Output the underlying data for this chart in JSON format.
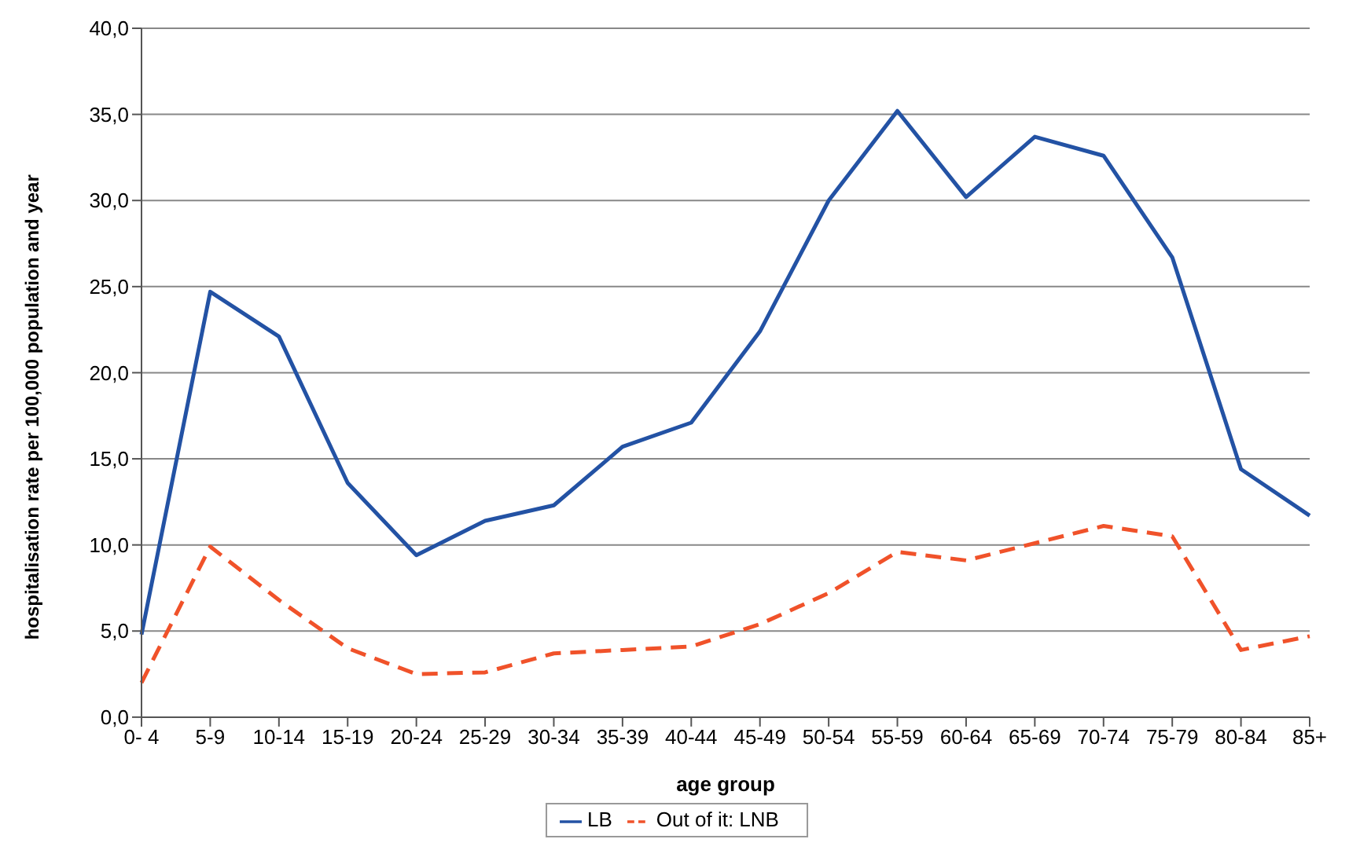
{
  "chart_data": {
    "type": "line",
    "xlabel": "age group",
    "ylabel": "hospitalisation rate per 100,000 population and year",
    "categories": [
      "0- 4",
      "5-9",
      "10-14",
      "15-19",
      "20-24",
      "25-29",
      "30-34",
      "35-39",
      "40-44",
      "45-49",
      "50-54",
      "55-59",
      "60-64",
      "65-69",
      "70-74",
      "75-79",
      "80-84",
      "85+"
    ],
    "series": [
      {
        "name": "LB",
        "color": "#2352a4",
        "line_style": "solid",
        "values": [
          4.8,
          24.7,
          22.1,
          13.6,
          9.4,
          11.4,
          12.3,
          15.7,
          17.1,
          22.4,
          30.0,
          35.2,
          30.2,
          33.7,
          32.6,
          26.7,
          14.4,
          11.7
        ]
      },
      {
        "name": "Out of it: LNB",
        "color": "#f0522a",
        "line_style": "dashed",
        "values": [
          2.0,
          9.9,
          6.8,
          4.0,
          2.5,
          2.6,
          3.7,
          3.9,
          4.1,
          5.4,
          7.2,
          9.6,
          9.1,
          10.1,
          11.1,
          10.5,
          3.9,
          4.7
        ]
      }
    ],
    "ylim": [
      0,
      40
    ],
    "yticks": [
      {
        "value": 0,
        "label": "0,0"
      },
      {
        "value": 5,
        "label": "5,0"
      },
      {
        "value": 10,
        "label": "10,0"
      },
      {
        "value": 15,
        "label": "15,0"
      },
      {
        "value": 20,
        "label": "20,0"
      },
      {
        "value": 25,
        "label": "25,0"
      },
      {
        "value": 30,
        "label": "30,0"
      },
      {
        "value": 35,
        "label": "35,0"
      },
      {
        "value": 40,
        "label": "40,0"
      }
    ],
    "grid": "y",
    "legend": "bottom",
    "marker": "none"
  }
}
